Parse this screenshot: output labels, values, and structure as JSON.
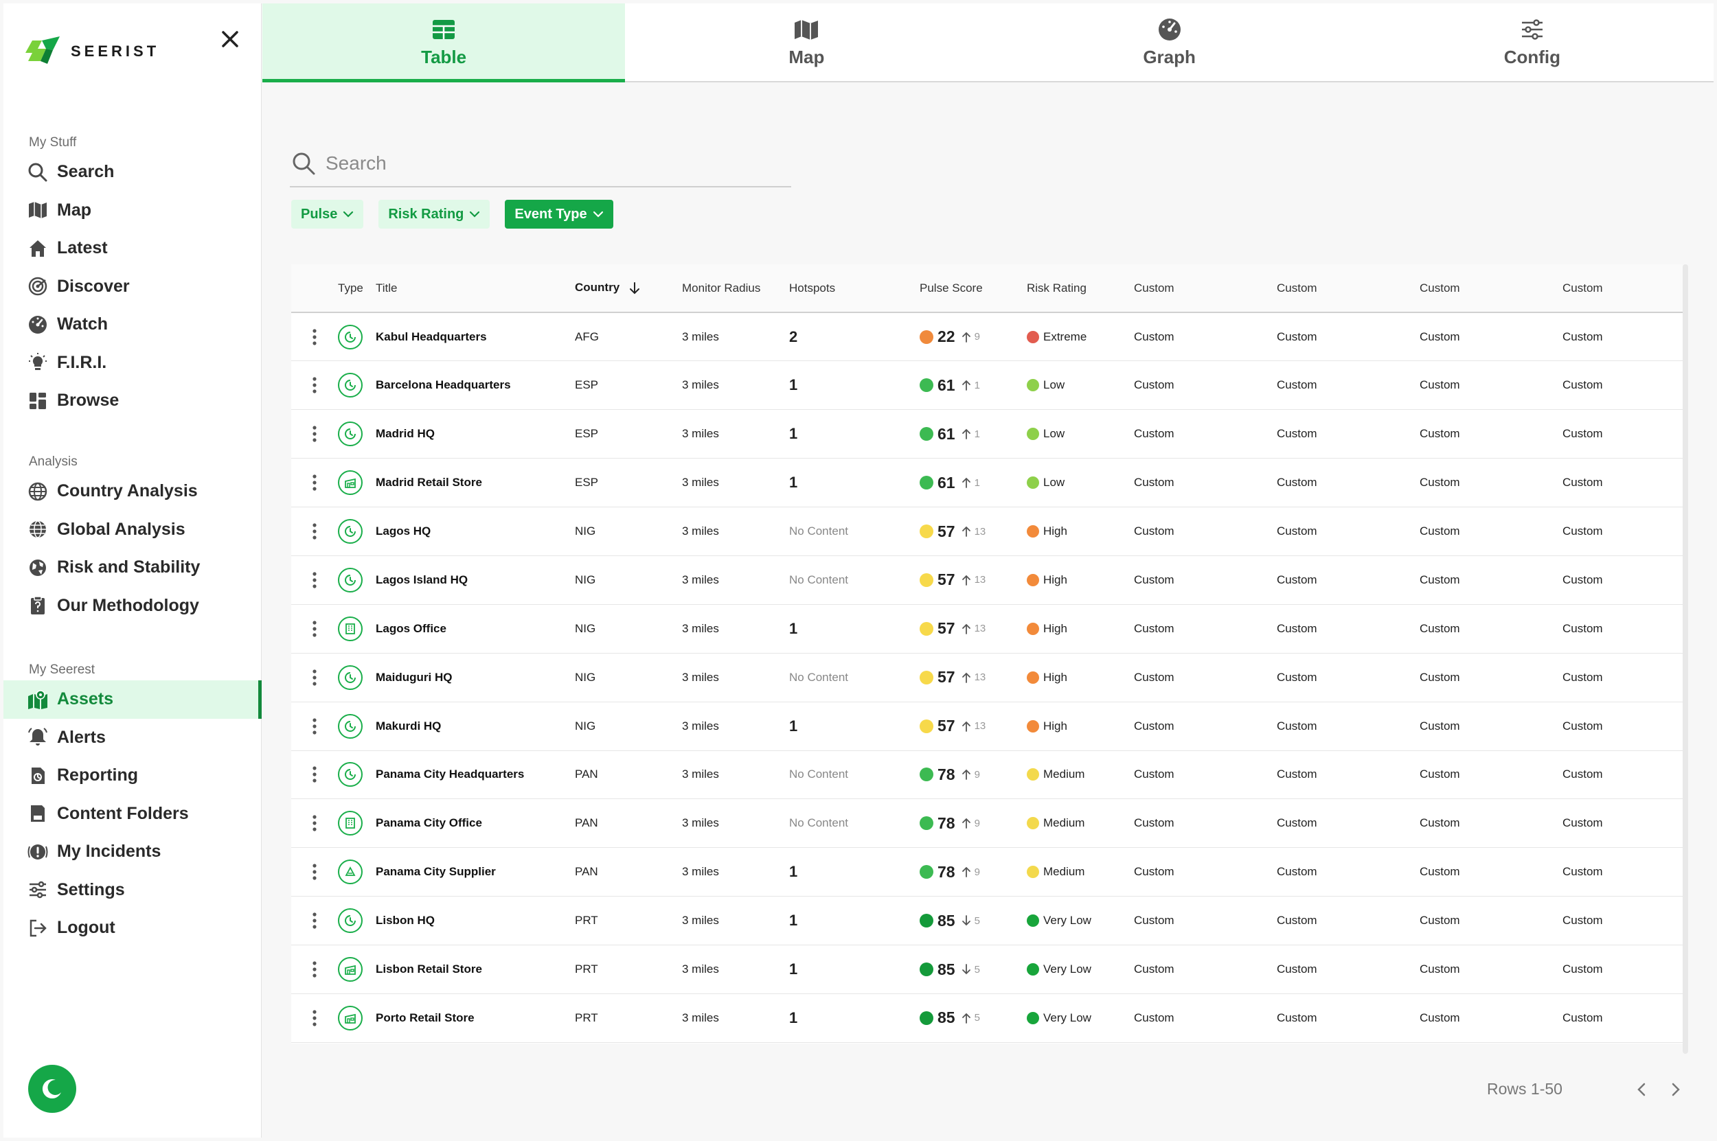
{
  "brand": {
    "name": "SEERIST",
    "accent": "#15a748",
    "accent_light": "#e0f9e8"
  },
  "sidebar": {
    "sections": [
      {
        "title": "My Stuff",
        "items": [
          {
            "label": "Search",
            "icon": "search-icon"
          },
          {
            "label": "Map",
            "icon": "map-icon"
          },
          {
            "label": "Latest",
            "icon": "home-icon"
          },
          {
            "label": "Discover",
            "icon": "radar-icon"
          },
          {
            "label": "Watch",
            "icon": "gauge-icon"
          },
          {
            "label": "F.I.R.I.",
            "icon": "lightbulb-icon"
          },
          {
            "label": "Browse",
            "icon": "grid-icon"
          }
        ]
      },
      {
        "title": "Analysis",
        "items": [
          {
            "label": "Country Analysis",
            "icon": "globe-icon"
          },
          {
            "label": "Global Analysis",
            "icon": "globe-grid-icon"
          },
          {
            "label": "Risk and Stability",
            "icon": "globe-alert-icon"
          },
          {
            "label": "Our Methodology",
            "icon": "clipboard-icon"
          }
        ]
      },
      {
        "title": "My Seerest",
        "items": [
          {
            "label": "Assets",
            "icon": "map-pin-icon",
            "active": true
          },
          {
            "label": "Alerts",
            "icon": "bell-icon"
          },
          {
            "label": "Reporting",
            "icon": "report-icon"
          },
          {
            "label": "Content Folders",
            "icon": "folder-icon"
          },
          {
            "label": "My Incidents",
            "icon": "alert-circle-icon"
          },
          {
            "label": "Settings",
            "icon": "sliders-icon"
          },
          {
            "label": "Logout",
            "icon": "logout-icon"
          }
        ]
      }
    ]
  },
  "tabs": [
    {
      "label": "Table",
      "icon": "table-icon",
      "active": true
    },
    {
      "label": "Map",
      "icon": "map-icon"
    },
    {
      "label": "Graph",
      "icon": "gauge-icon"
    },
    {
      "label": "Config",
      "icon": "sliders-icon"
    }
  ],
  "search": {
    "placeholder": "Search",
    "value": ""
  },
  "filters": [
    {
      "label": "Pulse",
      "filled": false
    },
    {
      "label": "Risk Rating",
      "filled": false
    },
    {
      "label": "Event Type",
      "filled": true
    }
  ],
  "table": {
    "columns": [
      "",
      "Type",
      "Title",
      "Country",
      "Monitor Radius",
      "Hotspots",
      "Pulse Score",
      "Risk Rating",
      "Custom",
      "Custom",
      "Custom",
      "Custom"
    ],
    "sort_column": "Country",
    "score_colors": {
      "orange": "#f08a3c",
      "green": "#3cba52",
      "yellow": "#f7d94a",
      "darkgreen": "#149a3a"
    },
    "risk_colors": {
      "Extreme": "#e25c4f",
      "Low": "#8ed04a",
      "High": "#f28a3a",
      "Medium": "#f3d94c",
      "Very Low": "#18a53b"
    },
    "rows": [
      {
        "type": "clock",
        "title": "Kabul Headquarters",
        "country": "AFG",
        "radius": "3 miles",
        "hotspots": "2",
        "score": "22",
        "score_color": "orange",
        "dir": "up",
        "delta": "9",
        "risk": "Extreme",
        "c1": "Custom",
        "c2": "Custom",
        "c3": "Custom",
        "c4": "Custom"
      },
      {
        "type": "clock",
        "title": "Barcelona Headquarters",
        "country": "ESP",
        "radius": "3 miles",
        "hotspots": "1",
        "score": "61",
        "score_color": "green",
        "dir": "up",
        "delta": "1",
        "risk": "Low",
        "c1": "Custom",
        "c2": "Custom",
        "c3": "Custom",
        "c4": "Custom"
      },
      {
        "type": "clock",
        "title": "Madrid HQ",
        "country": "ESP",
        "radius": "3 miles",
        "hotspots": "1",
        "score": "61",
        "score_color": "green",
        "dir": "up",
        "delta": "1",
        "risk": "Low",
        "c1": "Custom",
        "c2": "Custom",
        "c3": "Custom",
        "c4": "Custom"
      },
      {
        "type": "store",
        "title": "Madrid Retail Store",
        "country": "ESP",
        "radius": "3 miles",
        "hotspots": "1",
        "score": "61",
        "score_color": "green",
        "dir": "up",
        "delta": "1",
        "risk": "Low",
        "c1": "Custom",
        "c2": "Custom",
        "c3": "Custom",
        "c4": "Custom"
      },
      {
        "type": "clock",
        "title": "Lagos HQ",
        "country": "NIG",
        "radius": "3 miles",
        "hotspots": "No Content",
        "score": "57",
        "score_color": "yellow",
        "dir": "up",
        "delta": "13",
        "risk": "High",
        "c1": "Custom",
        "c2": "Custom",
        "c3": "Custom",
        "c4": "Custom"
      },
      {
        "type": "clock",
        "title": "Lagos Island HQ",
        "country": "NIG",
        "radius": "3 miles",
        "hotspots": "No Content",
        "score": "57",
        "score_color": "yellow",
        "dir": "up",
        "delta": "13",
        "risk": "High",
        "c1": "Custom",
        "c2": "Custom",
        "c3": "Custom",
        "c4": "Custom"
      },
      {
        "type": "office",
        "title": "Lagos Office",
        "country": "NIG",
        "radius": "3 miles",
        "hotspots": "1",
        "score": "57",
        "score_color": "yellow",
        "dir": "up",
        "delta": "13",
        "risk": "High",
        "c1": "Custom",
        "c2": "Custom",
        "c3": "Custom",
        "c4": "Custom"
      },
      {
        "type": "clock",
        "title": "Maiduguri HQ",
        "country": "NIG",
        "radius": "3 miles",
        "hotspots": "No Content",
        "score": "57",
        "score_color": "yellow",
        "dir": "up",
        "delta": "13",
        "risk": "High",
        "c1": "Custom",
        "c2": "Custom",
        "c3": "Custom",
        "c4": "Custom"
      },
      {
        "type": "clock",
        "title": "Makurdi HQ",
        "country": "NIG",
        "radius": "3 miles",
        "hotspots": "1",
        "score": "57",
        "score_color": "yellow",
        "dir": "up",
        "delta": "13",
        "risk": "High",
        "c1": "Custom",
        "c2": "Custom",
        "c3": "Custom",
        "c4": "Custom"
      },
      {
        "type": "clock",
        "title": "Panama City Headquarters",
        "country": "PAN",
        "radius": "3 miles",
        "hotspots": "No Content",
        "score": "78",
        "score_color": "green",
        "dir": "up",
        "delta": "9",
        "risk": "Medium",
        "c1": "Custom",
        "c2": "Custom",
        "c3": "Custom",
        "c4": "Custom"
      },
      {
        "type": "office",
        "title": "Panama City Office",
        "country": "PAN",
        "radius": "3 miles",
        "hotspots": "No Content",
        "score": "78",
        "score_color": "green",
        "dir": "up",
        "delta": "9",
        "risk": "Medium",
        "c1": "Custom",
        "c2": "Custom",
        "c3": "Custom",
        "c4": "Custom"
      },
      {
        "type": "supplier",
        "title": "Panama City Supplier",
        "country": "PAN",
        "radius": "3 miles",
        "hotspots": "1",
        "score": "78",
        "score_color": "green",
        "dir": "up",
        "delta": "9",
        "risk": "Medium",
        "c1": "Custom",
        "c2": "Custom",
        "c3": "Custom",
        "c4": "Custom"
      },
      {
        "type": "clock",
        "title": "Lisbon HQ",
        "country": "PRT",
        "radius": "3 miles",
        "hotspots": "1",
        "score": "85",
        "score_color": "darkgreen",
        "dir": "down",
        "delta": "5",
        "risk": "Very Low",
        "c1": "Custom",
        "c2": "Custom",
        "c3": "Custom",
        "c4": "Custom"
      },
      {
        "type": "store",
        "title": "Lisbon Retail Store",
        "country": "PRT",
        "radius": "3 miles",
        "hotspots": "1",
        "score": "85",
        "score_color": "darkgreen",
        "dir": "down",
        "delta": "5",
        "risk": "Very Low",
        "c1": "Custom",
        "c2": "Custom",
        "c3": "Custom",
        "c4": "Custom"
      },
      {
        "type": "store",
        "title": "Porto Retail Store",
        "country": "PRT",
        "radius": "3 miles",
        "hotspots": "1",
        "score": "85",
        "score_color": "darkgreen",
        "dir": "up",
        "delta": "5",
        "risk": "Very Low",
        "c1": "Custom",
        "c2": "Custom",
        "c3": "Custom",
        "c4": "Custom"
      }
    ]
  },
  "pagination": {
    "rows_label": "Rows 1-50"
  }
}
